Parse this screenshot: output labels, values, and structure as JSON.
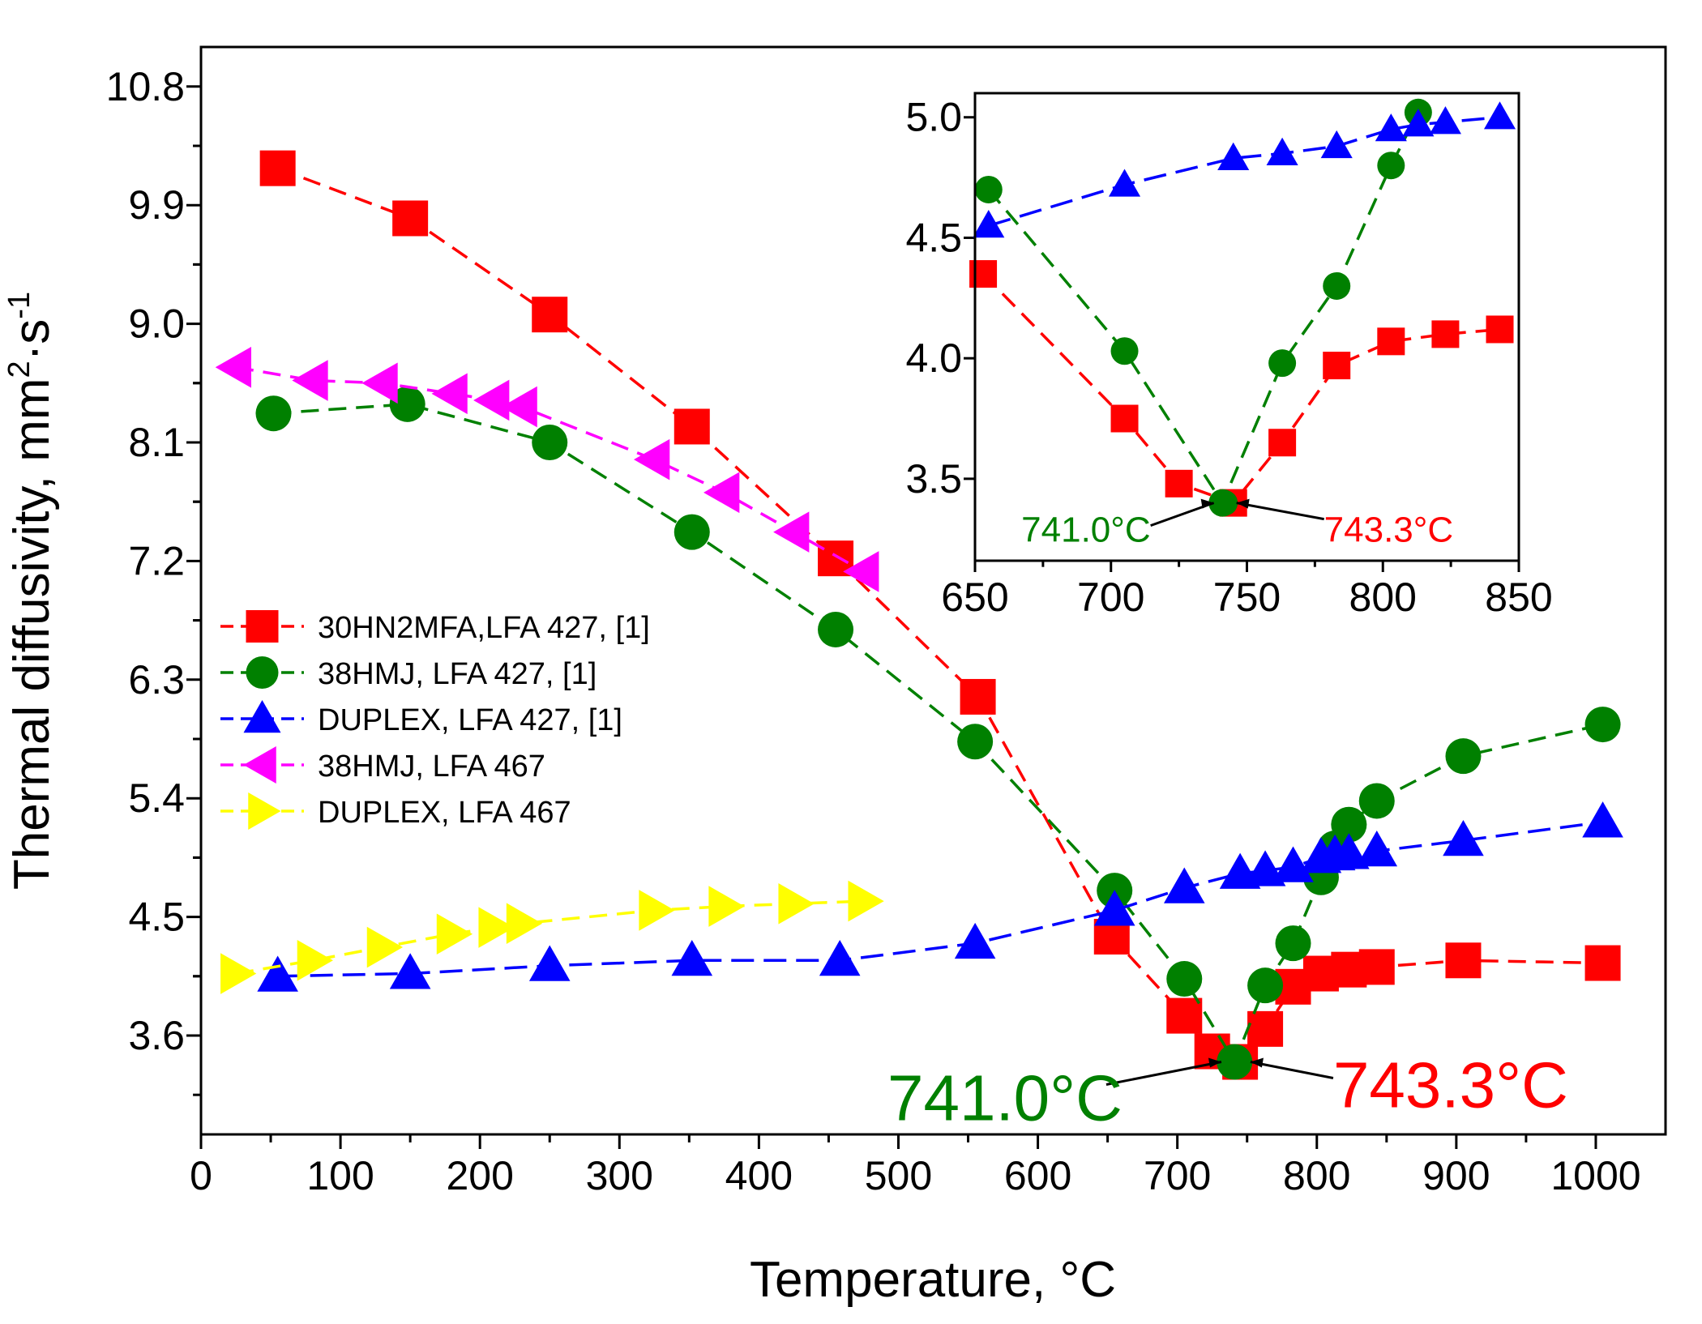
{
  "chart_data": [
    {
      "id": "main",
      "type": "line",
      "xlabel": "Temperature, °C",
      "ylabel_main": "Thermal diffusivity, mm",
      "ylabel_sup1": "2",
      "ylabel_dot": "·s",
      "ylabel_sup2": "-1",
      "xlim": [
        0,
        1050
      ],
      "ylim": [
        2.85,
        11.1
      ],
      "xticks": [
        0,
        100,
        200,
        300,
        400,
        500,
        600,
        700,
        800,
        900,
        1000
      ],
      "xtick_labels": [
        "0",
        "100",
        "200",
        "300",
        "400",
        "500",
        "600",
        "700",
        "800",
        "900",
        "1000"
      ],
      "yticks": [
        3.6,
        4.5,
        5.4,
        6.3,
        7.2,
        8.1,
        9.0,
        9.9,
        10.8
      ],
      "ytick_labels": [
        "3.6",
        "4.5",
        "5.4",
        "6.3",
        "7.2",
        "8.1",
        "9.0",
        "9.9",
        "10.8"
      ],
      "legend_position": "middle-left",
      "series": [
        {
          "name": "30HN2MFA,LFA 427, [1]",
          "color": "#ff0000",
          "marker": "square",
          "x": [
            55,
            150,
            250,
            352,
            455,
            557,
            653,
            705,
            725,
            745,
            763,
            783,
            803,
            823,
            843,
            905,
            1005
          ],
          "y": [
            10.18,
            9.8,
            9.07,
            8.22,
            7.22,
            6.17,
            4.35,
            3.75,
            3.48,
            3.4,
            3.65,
            3.97,
            4.07,
            4.1,
            4.12,
            4.17,
            4.15
          ]
        },
        {
          "name": "38HMJ, LFA 427, [1]",
          "color": "#008000",
          "marker": "circle",
          "x": [
            52,
            148,
            250,
            352,
            455,
            555,
            655,
            705,
            741,
            763,
            783,
            803,
            813,
            823,
            843,
            905,
            1005
          ],
          "y": [
            8.32,
            8.39,
            8.1,
            7.42,
            6.68,
            5.83,
            4.7,
            4.03,
            3.4,
            3.98,
            4.3,
            4.8,
            5.02,
            5.2,
            5.38,
            5.72,
            5.96
          ]
        },
        {
          "name": "DUPLEX, LFA 427, [1]",
          "color": "#0000ff",
          "marker": "triangle-up",
          "x": [
            55,
            150,
            250,
            352,
            458,
            555,
            655,
            705,
            745,
            763,
            783,
            803,
            813,
            823,
            843,
            905,
            1005
          ],
          "y": [
            4.05,
            4.07,
            4.13,
            4.17,
            4.17,
            4.3,
            4.55,
            4.72,
            4.83,
            4.85,
            4.88,
            4.95,
            4.97,
            4.98,
            5.0,
            5.08,
            5.22
          ]
        },
        {
          "name": "38HMJ, LFA 467",
          "color": "#ff00ff",
          "marker": "triangle-left",
          "x": [
            25,
            80,
            130,
            180,
            210,
            230,
            325,
            375,
            425,
            475
          ],
          "y": [
            8.67,
            8.57,
            8.55,
            8.47,
            8.42,
            8.37,
            7.97,
            7.72,
            7.42,
            7.12
          ]
        },
        {
          "name": "DUPLEX, LFA 467",
          "color": "#ffff00",
          "marker": "triangle-right",
          "x": [
            25,
            80,
            130,
            180,
            210,
            230,
            325,
            375,
            425,
            475
          ],
          "y": [
            4.07,
            4.17,
            4.27,
            4.37,
            4.42,
            4.45,
            4.55,
            4.58,
            4.6,
            4.62
          ]
        }
      ],
      "annotations": [
        {
          "text": "741.0°C",
          "color": "#008000",
          "x": 741,
          "y": 3.4
        },
        {
          "text": "743.3°C",
          "color": "#ff0000",
          "x": 743.3,
          "y": 3.4
        }
      ]
    },
    {
      "id": "inset",
      "type": "line",
      "xlim": [
        650,
        850
      ],
      "ylim": [
        3.16,
        5.1
      ],
      "xticks": [
        650,
        700,
        750,
        800,
        850
      ],
      "xtick_labels": [
        "650",
        "700",
        "750",
        "800",
        "850"
      ],
      "yticks": [
        3.5,
        4.0,
        4.5,
        5.0
      ],
      "ytick_labels": [
        "3.5",
        "4.0",
        "4.5",
        "5.0"
      ],
      "series": [
        {
          "name": "30HN2MFA,LFA 427, [1]",
          "color": "#ff0000",
          "marker": "square",
          "x": [
            653,
            705,
            725,
            745,
            763,
            783,
            803,
            823,
            843
          ],
          "y": [
            4.35,
            3.75,
            3.48,
            3.4,
            3.65,
            3.97,
            4.07,
            4.1,
            4.12
          ]
        },
        {
          "name": "38HMJ, LFA 427, [1]",
          "color": "#008000",
          "marker": "circle",
          "x": [
            655,
            705,
            741,
            763,
            783,
            803,
            813
          ],
          "y": [
            4.7,
            4.03,
            3.4,
            3.98,
            4.3,
            4.8,
            5.02
          ]
        },
        {
          "name": "DUPLEX, LFA 427, [1]",
          "color": "#0000ff",
          "marker": "triangle-up",
          "x": [
            655,
            705,
            745,
            763,
            783,
            803,
            813,
            823,
            843
          ],
          "y": [
            4.55,
            4.72,
            4.83,
            4.85,
            4.88,
            4.95,
            4.97,
            4.98,
            5.0
          ]
        }
      ],
      "annotations": [
        {
          "text": "741.0°C",
          "color": "#008000",
          "x": 741,
          "y": 3.4
        },
        {
          "text": "743.3°C",
          "color": "#ff0000",
          "x": 743.3,
          "y": 3.4
        }
      ]
    }
  ]
}
